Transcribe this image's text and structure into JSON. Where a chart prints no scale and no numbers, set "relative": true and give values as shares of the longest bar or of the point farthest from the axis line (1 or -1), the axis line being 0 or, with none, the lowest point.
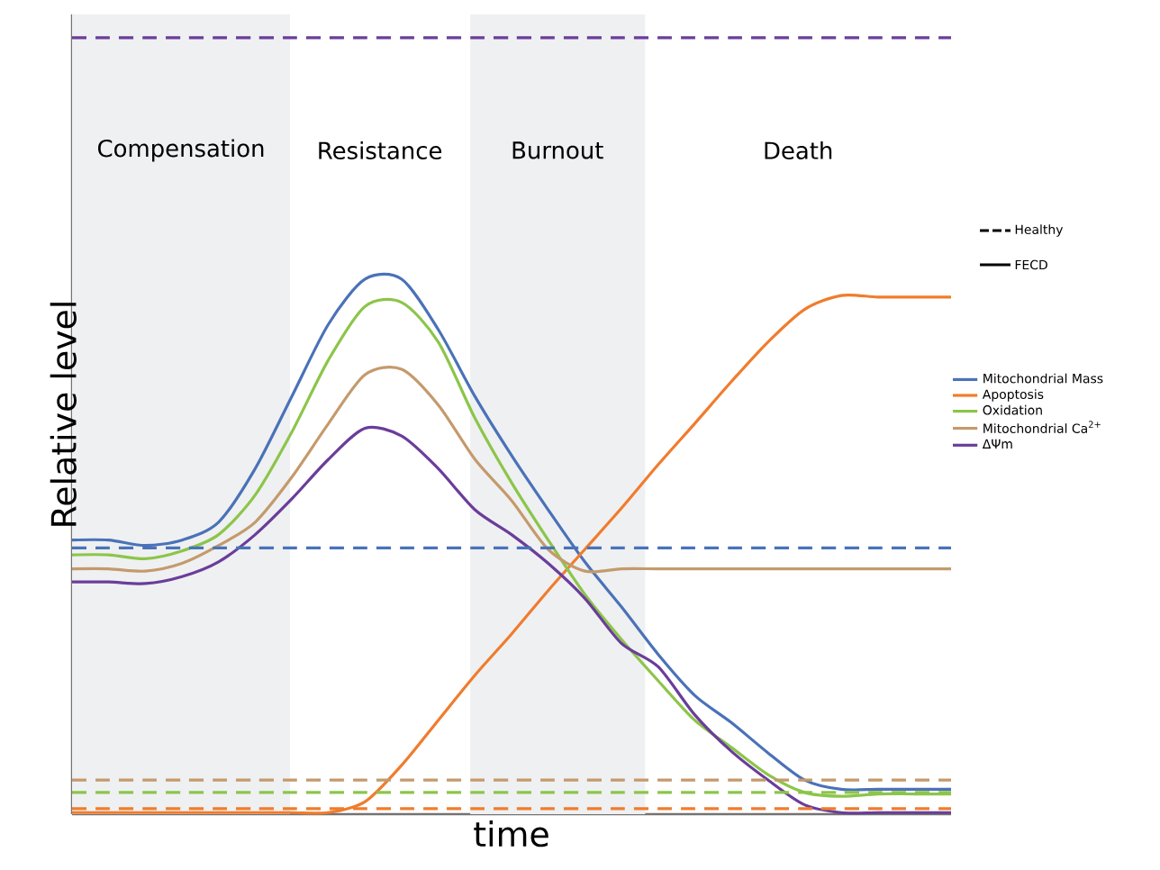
{
  "chart_data": {
    "type": "line",
    "relative": true,
    "xlabel": "time",
    "ylabel": "Relative level",
    "categories": [
      null,
      null,
      null,
      null,
      null,
      null,
      null,
      null,
      null,
      null,
      null,
      null,
      null,
      null,
      null,
      null,
      null,
      null,
      null,
      null,
      null,
      null,
      null,
      null,
      null
    ],
    "series": [
      {
        "name": "Mitochondrial Mass",
        "color": "#4a72b8",
        "values": [
          0.353,
          0.353,
          0.346,
          0.353,
          0.376,
          0.445,
          0.538,
          0.631,
          0.689,
          0.689,
          0.624,
          0.538,
          0.462,
          0.392,
          0.325,
          0.267,
          0.206,
          0.153,
          0.118,
          0.079,
          0.044,
          0.032,
          0.032,
          0.032,
          0.032
        ]
      },
      {
        "name": "Apoptosis",
        "color": "#f07c2c",
        "values": [
          0.002,
          0.002,
          0.002,
          0.002,
          0.002,
          0.002,
          0.002,
          0.002,
          0.016,
          0.063,
          0.121,
          0.179,
          0.232,
          0.288,
          0.341,
          0.394,
          0.45,
          0.503,
          0.557,
          0.608,
          0.65,
          0.668,
          0.666,
          0.666,
          0.666
        ]
      },
      {
        "name": "Oxidation",
        "color": "#8cc54a",
        "values": [
          0.334,
          0.334,
          0.329,
          0.339,
          0.36,
          0.411,
          0.492,
          0.585,
          0.654,
          0.659,
          0.608,
          0.51,
          0.427,
          0.353,
          0.283,
          0.225,
          0.172,
          0.121,
          0.086,
          0.051,
          0.028,
          0.023,
          0.026,
          0.026,
          0.026
        ]
      },
      {
        "name": "Mitochondrial Ca$^{2+}$",
        "color": "#c49a6c",
        "values": [
          0.316,
          0.316,
          0.313,
          0.323,
          0.346,
          0.376,
          0.434,
          0.503,
          0.566,
          0.573,
          0.527,
          0.457,
          0.404,
          0.341,
          0.313,
          0.316,
          0.316,
          0.316,
          0.316,
          0.316,
          0.316,
          0.316,
          0.316,
          0.316,
          0.316
        ]
      },
      {
        "name": "ΔΨm",
        "color": "#6a3d9a",
        "values": [
          0.299,
          0.299,
          0.297,
          0.306,
          0.325,
          0.36,
          0.406,
          0.457,
          0.497,
          0.487,
          0.445,
          0.392,
          0.36,
          0.323,
          0.278,
          0.22,
          0.19,
          0.128,
          0.081,
          0.044,
          0.012,
          0.002,
          0.002,
          0.002,
          0.002
        ]
      },
      {
        "color": "#6a3d9a",
        "line_style": "dashed",
        "values": [
          1,
          1,
          1,
          1,
          1,
          1,
          1,
          1,
          1,
          1,
          1,
          1,
          1,
          1,
          1,
          1,
          1,
          1,
          1,
          1,
          1,
          1,
          1,
          1,
          1
        ]
      },
      {
        "color": "#4a72b8",
        "line_style": "dashed",
        "values": [
          0.343,
          0.343,
          0.343,
          0.343,
          0.343,
          0.343,
          0.343,
          0.343,
          0.343,
          0.343,
          0.343,
          0.343,
          0.343,
          0.343,
          0.343,
          0.343,
          0.343,
          0.343,
          0.343,
          0.343,
          0.343,
          0.343,
          0.343,
          0.343,
          0.343
        ]
      },
      {
        "color": "#c49a6c",
        "line_style": "dashed",
        "values": [
          0.044,
          0.044,
          0.044,
          0.044,
          0.044,
          0.044,
          0.044,
          0.044,
          0.044,
          0.044,
          0.044,
          0.044,
          0.044,
          0.044,
          0.044,
          0.044,
          0.044,
          0.044,
          0.044,
          0.044,
          0.044,
          0.044,
          0.044,
          0.044,
          0.044
        ]
      },
      {
        "color": "#8cc54a",
        "line_style": "dashed",
        "values": [
          0.028,
          0.028,
          0.028,
          0.028,
          0.028,
          0.028,
          0.028,
          0.028,
          0.028,
          0.028,
          0.028,
          0.028,
          0.028,
          0.028,
          0.028,
          0.028,
          0.028,
          0.028,
          0.028,
          0.028,
          0.028,
          0.028,
          0.028,
          0.028,
          0.028
        ]
      },
      {
        "color": "#f07c2c",
        "line_style": "dashed",
        "values": [
          0.007,
          0.007,
          0.007,
          0.007,
          0.007,
          0.007,
          0.007,
          0.007,
          0.007,
          0.007,
          0.007,
          0.007,
          0.007,
          0.007,
          0.007,
          0.007,
          0.007,
          0.007,
          0.007,
          0.007,
          0.007,
          0.007,
          0.007,
          0.007,
          0.007
        ]
      }
    ],
    "annotations": [
      "Compensation",
      "Resistance",
      "Burnout",
      "Death",
      "Healthy",
      "FECD"
    ],
    "line_style": "solid",
    "marker": "none",
    "legend": "right"
  }
}
